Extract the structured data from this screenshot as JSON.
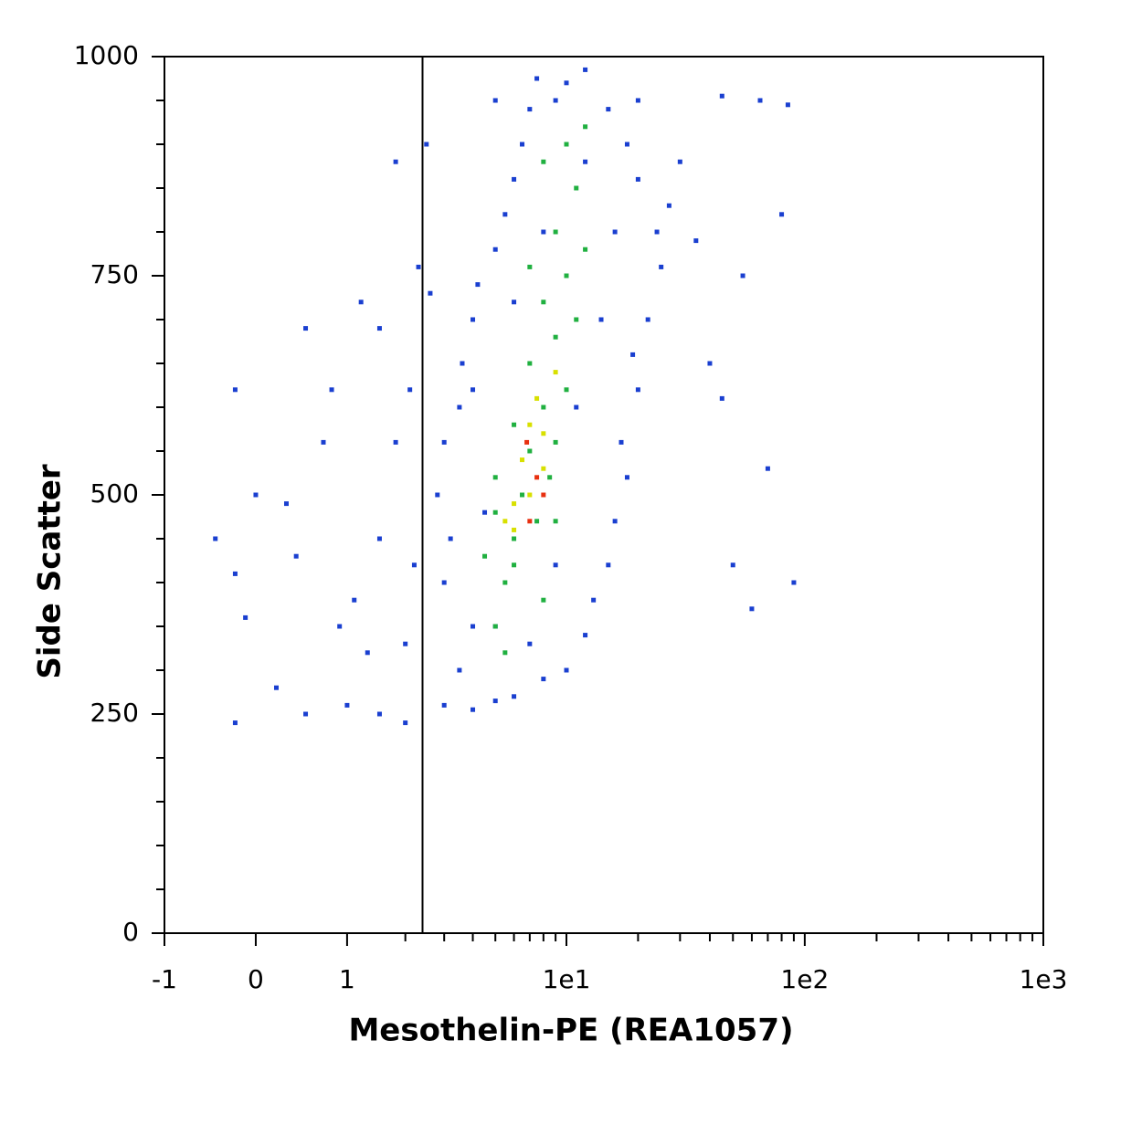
{
  "chart_data": {
    "type": "scatter",
    "x_label": "Mesothelin-PE (REA1057)",
    "y_label": "Side Scatter",
    "xscale": "arcsinh",
    "xlim": [
      -1,
      1000
    ],
    "ylim": [
      0,
      1000
    ],
    "xticks": [
      -1,
      0,
      1,
      {
        "value": 10,
        "label": "1e1"
      },
      {
        "value": 100,
        "label": "1e2"
      },
      {
        "value": 1000,
        "label": "1e3"
      }
    ],
    "xminorticks": [
      2,
      3,
      4,
      5,
      6,
      7,
      8,
      9,
      20,
      30,
      40,
      50,
      60,
      70,
      80,
      90,
      200,
      300,
      400,
      500,
      600,
      700,
      800,
      900
    ],
    "yticks": [
      0,
      250,
      500,
      750,
      1000
    ],
    "yminorticks": [
      50,
      100,
      150,
      200,
      300,
      350,
      400,
      450,
      550,
      600,
      650,
      700,
      800,
      850,
      900,
      950
    ],
    "gate": 2.4,
    "series": [
      {
        "color": "#1a3fd0",
        "x": [
          3,
          4,
          5,
          6,
          3.5,
          8,
          10,
          4,
          12,
          13,
          3,
          15,
          3.2,
          16,
          2.8,
          18,
          3,
          17,
          3.5,
          20,
          3.6,
          19,
          4,
          22,
          4.2,
          25,
          5,
          24,
          5.5,
          27,
          6,
          20,
          6.5,
          18,
          7,
          15,
          7.5,
          12,
          10,
          5,
          30,
          35,
          40,
          45,
          50,
          60,
          70,
          80,
          90,
          55,
          65,
          85,
          45,
          2.6,
          2.5,
          1.8,
          1.5,
          1.2,
          0.8,
          0.5,
          0.3,
          0,
          -0.2,
          -0.4,
          -0.2,
          0.2,
          0.5,
          1,
          1.5,
          2,
          1.1,
          1.5,
          1.8,
          2,
          2.2,
          0.7,
          0.9,
          -0.2,
          -0.1,
          0.4,
          1.3,
          2.1,
          2.3,
          11,
          9,
          8,
          6,
          14,
          12,
          9,
          4.5,
          5,
          4,
          7,
          16,
          20
        ],
        "values": [
          260,
          255,
          265,
          270,
          300,
          290,
          300,
          350,
          340,
          380,
          400,
          420,
          450,
          470,
          500,
          520,
          560,
          560,
          600,
          620,
          650,
          660,
          700,
          700,
          740,
          760,
          780,
          800,
          820,
          830,
          860,
          860,
          900,
          900,
          940,
          940,
          975,
          985,
          970,
          950,
          880,
          790,
          650,
          610,
          420,
          370,
          530,
          820,
          400,
          750,
          950,
          945,
          955,
          730,
          900,
          880,
          690,
          720,
          620,
          690,
          490,
          500,
          620,
          450,
          410,
          280,
          250,
          260,
          250,
          240,
          380,
          450,
          560,
          330,
          420,
          560,
          350,
          240,
          360,
          430,
          320,
          620,
          760,
          600,
          420,
          800,
          720,
          700,
          880,
          950,
          480,
          350,
          620,
          330,
          800,
          950
        ]
      },
      {
        "color": "#20b040",
        "x": [
          5,
          5.5,
          6,
          5,
          6.5,
          7,
          6,
          8,
          7,
          9,
          8,
          10,
          9,
          11,
          10,
          6,
          7.5,
          8.5,
          9,
          10,
          11,
          12,
          8,
          4.5,
          5,
          12,
          8,
          7,
          5.5,
          9
        ],
        "values": [
          350,
          400,
          450,
          480,
          500,
          550,
          580,
          600,
          650,
          680,
          720,
          750,
          800,
          850,
          900,
          420,
          470,
          520,
          560,
          620,
          700,
          780,
          380,
          430,
          520,
          920,
          880,
          760,
          320,
          470
        ]
      },
      {
        "color": "#d8e000",
        "x": [
          6,
          7,
          6.5,
          8,
          7.5,
          6,
          8,
          9,
          7,
          5.5
        ],
        "values": [
          460,
          500,
          540,
          570,
          610,
          490,
          530,
          640,
          580,
          470
        ]
      },
      {
        "color": "#e83010",
        "x": [
          7.5,
          6.8,
          8,
          7
        ],
        "values": [
          520,
          560,
          500,
          470
        ]
      }
    ]
  }
}
